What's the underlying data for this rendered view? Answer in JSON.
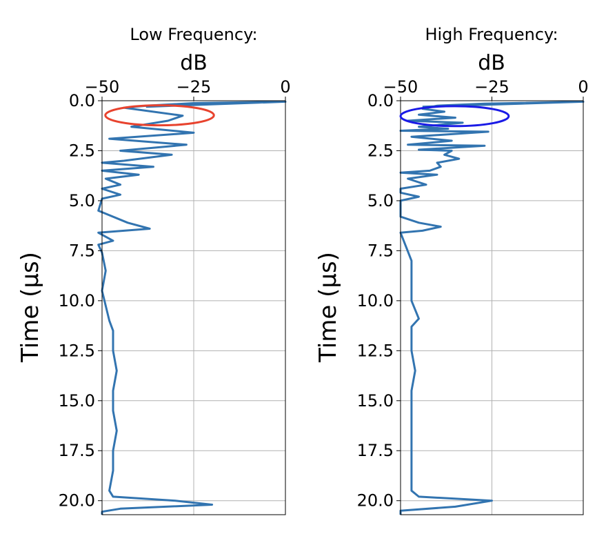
{
  "chart_data": [
    {
      "type": "line",
      "title": "Low Frequency:",
      "xlabel": "dB",
      "ylabel": "Time (μs)",
      "xlim": [
        -50,
        0
      ],
      "ylim": [
        20.7,
        0
      ],
      "x_ticks": [
        "−50",
        "−25",
        "0"
      ],
      "x_tick_values": [
        -50,
        -25,
        0
      ],
      "y_ticks": [
        "0.0",
        "2.5",
        "5.0",
        "7.5",
        "10.0",
        "12.5",
        "15.0",
        "17.5",
        "20.0"
      ],
      "y_tick_values": [
        0,
        2.5,
        5,
        7.5,
        10,
        12.5,
        15,
        17.5,
        20
      ],
      "grid": true,
      "series": [
        {
          "color": "#3274b0",
          "points": [
            [
              -38,
              0.3
            ],
            [
              0,
              0.05
            ],
            [
              -25,
              0.12
            ],
            [
              -38,
              0.25
            ],
            [
              -44,
              0.35
            ],
            [
              -28,
              0.75
            ],
            [
              -32,
              1.0
            ],
            [
              -42,
              1.3
            ],
            [
              -25,
              1.6
            ],
            [
              -48,
              1.9
            ],
            [
              -27,
              2.2
            ],
            [
              -45,
              2.5
            ],
            [
              -31,
              2.7
            ],
            [
              -44,
              3.0
            ],
            [
              -50,
              3.1
            ],
            [
              -36,
              3.3
            ],
            [
              -50,
              3.5
            ],
            [
              -40,
              3.7
            ],
            [
              -49,
              3.9
            ],
            [
              -45,
              4.2
            ],
            [
              -50,
              4.4
            ],
            [
              -45,
              4.7
            ],
            [
              -50,
              4.9
            ],
            [
              -51,
              5.5
            ],
            [
              -43,
              6.1
            ],
            [
              -37,
              6.4
            ],
            [
              -51,
              6.6
            ],
            [
              -47,
              7.0
            ],
            [
              -51,
              7.2
            ],
            [
              -50,
              7.6
            ],
            [
              -49,
              8.5
            ],
            [
              -50,
              9.5
            ],
            [
              -48,
              11.0
            ],
            [
              -47,
              11.5
            ],
            [
              -47,
              12.5
            ],
            [
              -46,
              13.5
            ],
            [
              -47,
              14.5
            ],
            [
              -47,
              15.5
            ],
            [
              -46,
              16.5
            ],
            [
              -47,
              17.5
            ],
            [
              -47,
              18.5
            ],
            [
              -48,
              19.5
            ],
            [
              -47,
              19.8
            ],
            [
              -30,
              20.0
            ],
            [
              -20,
              20.2
            ],
            [
              -45,
              20.4
            ],
            [
              -50,
              20.55
            ],
            [
              -50,
              20.7
            ]
          ]
        }
      ],
      "annotations": [
        {
          "shape": "ellipse",
          "color": "#e8432e",
          "center": [
            -34.3,
            0.73
          ],
          "semi_axes": [
            14.8,
            0.5
          ]
        }
      ]
    },
    {
      "type": "line",
      "title": "High Frequency:",
      "xlabel": "dB",
      "ylabel": "Time (μs)",
      "xlim": [
        -50,
        0
      ],
      "ylim": [
        20.7,
        0
      ],
      "x_ticks": [
        "−50",
        "−25",
        "0"
      ],
      "x_tick_values": [
        -50,
        -25,
        0
      ],
      "y_ticks": [
        "0.0",
        "2.5",
        "5.0",
        "7.5",
        "10.0",
        "12.5",
        "15.0",
        "17.5",
        "20.0"
      ],
      "y_tick_values": [
        0,
        2.5,
        5,
        7.5,
        10,
        12.5,
        15,
        17.5,
        20
      ],
      "grid": true,
      "series": [
        {
          "color": "#3274b0",
          "points": [
            [
              -44,
              0.3
            ],
            [
              0,
              0.05
            ],
            [
              -27,
              0.15
            ],
            [
              -40,
              0.25
            ],
            [
              -44,
              0.4
            ],
            [
              -38,
              0.55
            ],
            [
              -45,
              0.7
            ],
            [
              -35,
              0.85
            ],
            [
              -48,
              1.0
            ],
            [
              -33,
              1.1
            ],
            [
              -45,
              1.3
            ],
            [
              -37,
              1.4
            ],
            [
              -50,
              1.5
            ],
            [
              -26,
              1.55
            ],
            [
              -47,
              1.8
            ],
            [
              -36,
              2.0
            ],
            [
              -48,
              2.2
            ],
            [
              -27,
              2.25
            ],
            [
              -45,
              2.45
            ],
            [
              -36,
              2.5
            ],
            [
              -38,
              2.7
            ],
            [
              -34,
              2.9
            ],
            [
              -40,
              3.1
            ],
            [
              -39,
              3.3
            ],
            [
              -42,
              3.5
            ],
            [
              -50,
              3.6
            ],
            [
              -40,
              3.7
            ],
            [
              -48,
              3.9
            ],
            [
              -43,
              4.2
            ],
            [
              -50,
              4.4
            ],
            [
              -50,
              4.6
            ],
            [
              -45,
              4.8
            ],
            [
              -50,
              5.0
            ],
            [
              -50,
              5.8
            ],
            [
              -45,
              6.1
            ],
            [
              -39,
              6.3
            ],
            [
              -44,
              6.5
            ],
            [
              -50,
              6.6
            ],
            [
              -47,
              8.0
            ],
            [
              -47,
              10.0
            ],
            [
              -45,
              10.9
            ],
            [
              -47,
              11.3
            ],
            [
              -47,
              12.5
            ],
            [
              -46,
              13.5
            ],
            [
              -47,
              14.5
            ],
            [
              -47,
              15.5
            ],
            [
              -47,
              17.0
            ],
            [
              -47,
              18.5
            ],
            [
              -47,
              19.5
            ],
            [
              -45,
              19.8
            ],
            [
              -25,
              20.0
            ],
            [
              -35,
              20.3
            ],
            [
              -50,
              20.5
            ],
            [
              -50,
              20.7
            ]
          ]
        }
      ],
      "annotations": [
        {
          "shape": "ellipse",
          "color": "#1a1ae6",
          "center": [
            -35.2,
            0.77
          ],
          "semi_axes": [
            14.8,
            0.5
          ]
        }
      ]
    }
  ]
}
